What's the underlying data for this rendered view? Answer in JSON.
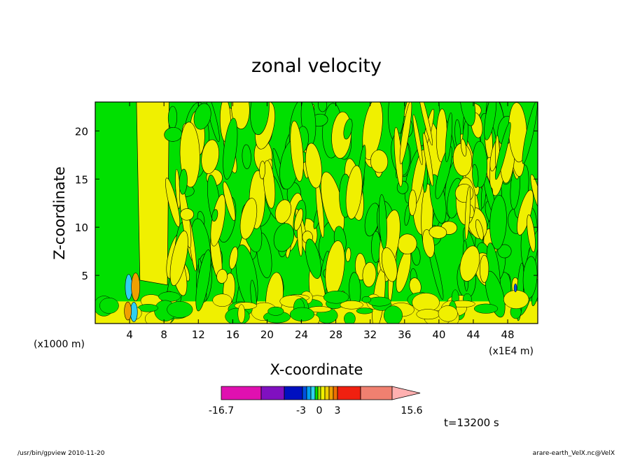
{
  "chart_data": {
    "type": "heatmap",
    "title": "zonal velocity",
    "xlabel": "X-coordinate",
    "ylabel": "Z-coordinate",
    "x_unit_left": "(x1000 m)",
    "x_unit_right": "(x1E4 m)",
    "x_ticks": [
      "4",
      "8",
      "12",
      "16",
      "20",
      "24",
      "28",
      "32",
      "36",
      "40",
      "44",
      "48"
    ],
    "y_ticks": [
      "5",
      "10",
      "15",
      "20"
    ],
    "xlim": [
      0,
      51.5
    ],
    "ylim": [
      0,
      23
    ],
    "time_label": "t=13200 s",
    "colorbar": {
      "labels": [
        "-16.7",
        "-3",
        "0",
        "3",
        "15.6"
      ],
      "colors": [
        "#e010b0",
        "#8010c0",
        "#0010c0",
        "#0050e0",
        "#00a0f0",
        "#30d0f0",
        "#00e000",
        "#a0e800",
        "#f0f000",
        "#f0d000",
        "#f0a000",
        "#f07000",
        "#f02010",
        "#f08070",
        "#ffb0b0"
      ]
    },
    "footer_left": "/usr/bin/gpview   2010-11-20",
    "footer_right": "arare-earth_VelX.nc@VelX"
  }
}
